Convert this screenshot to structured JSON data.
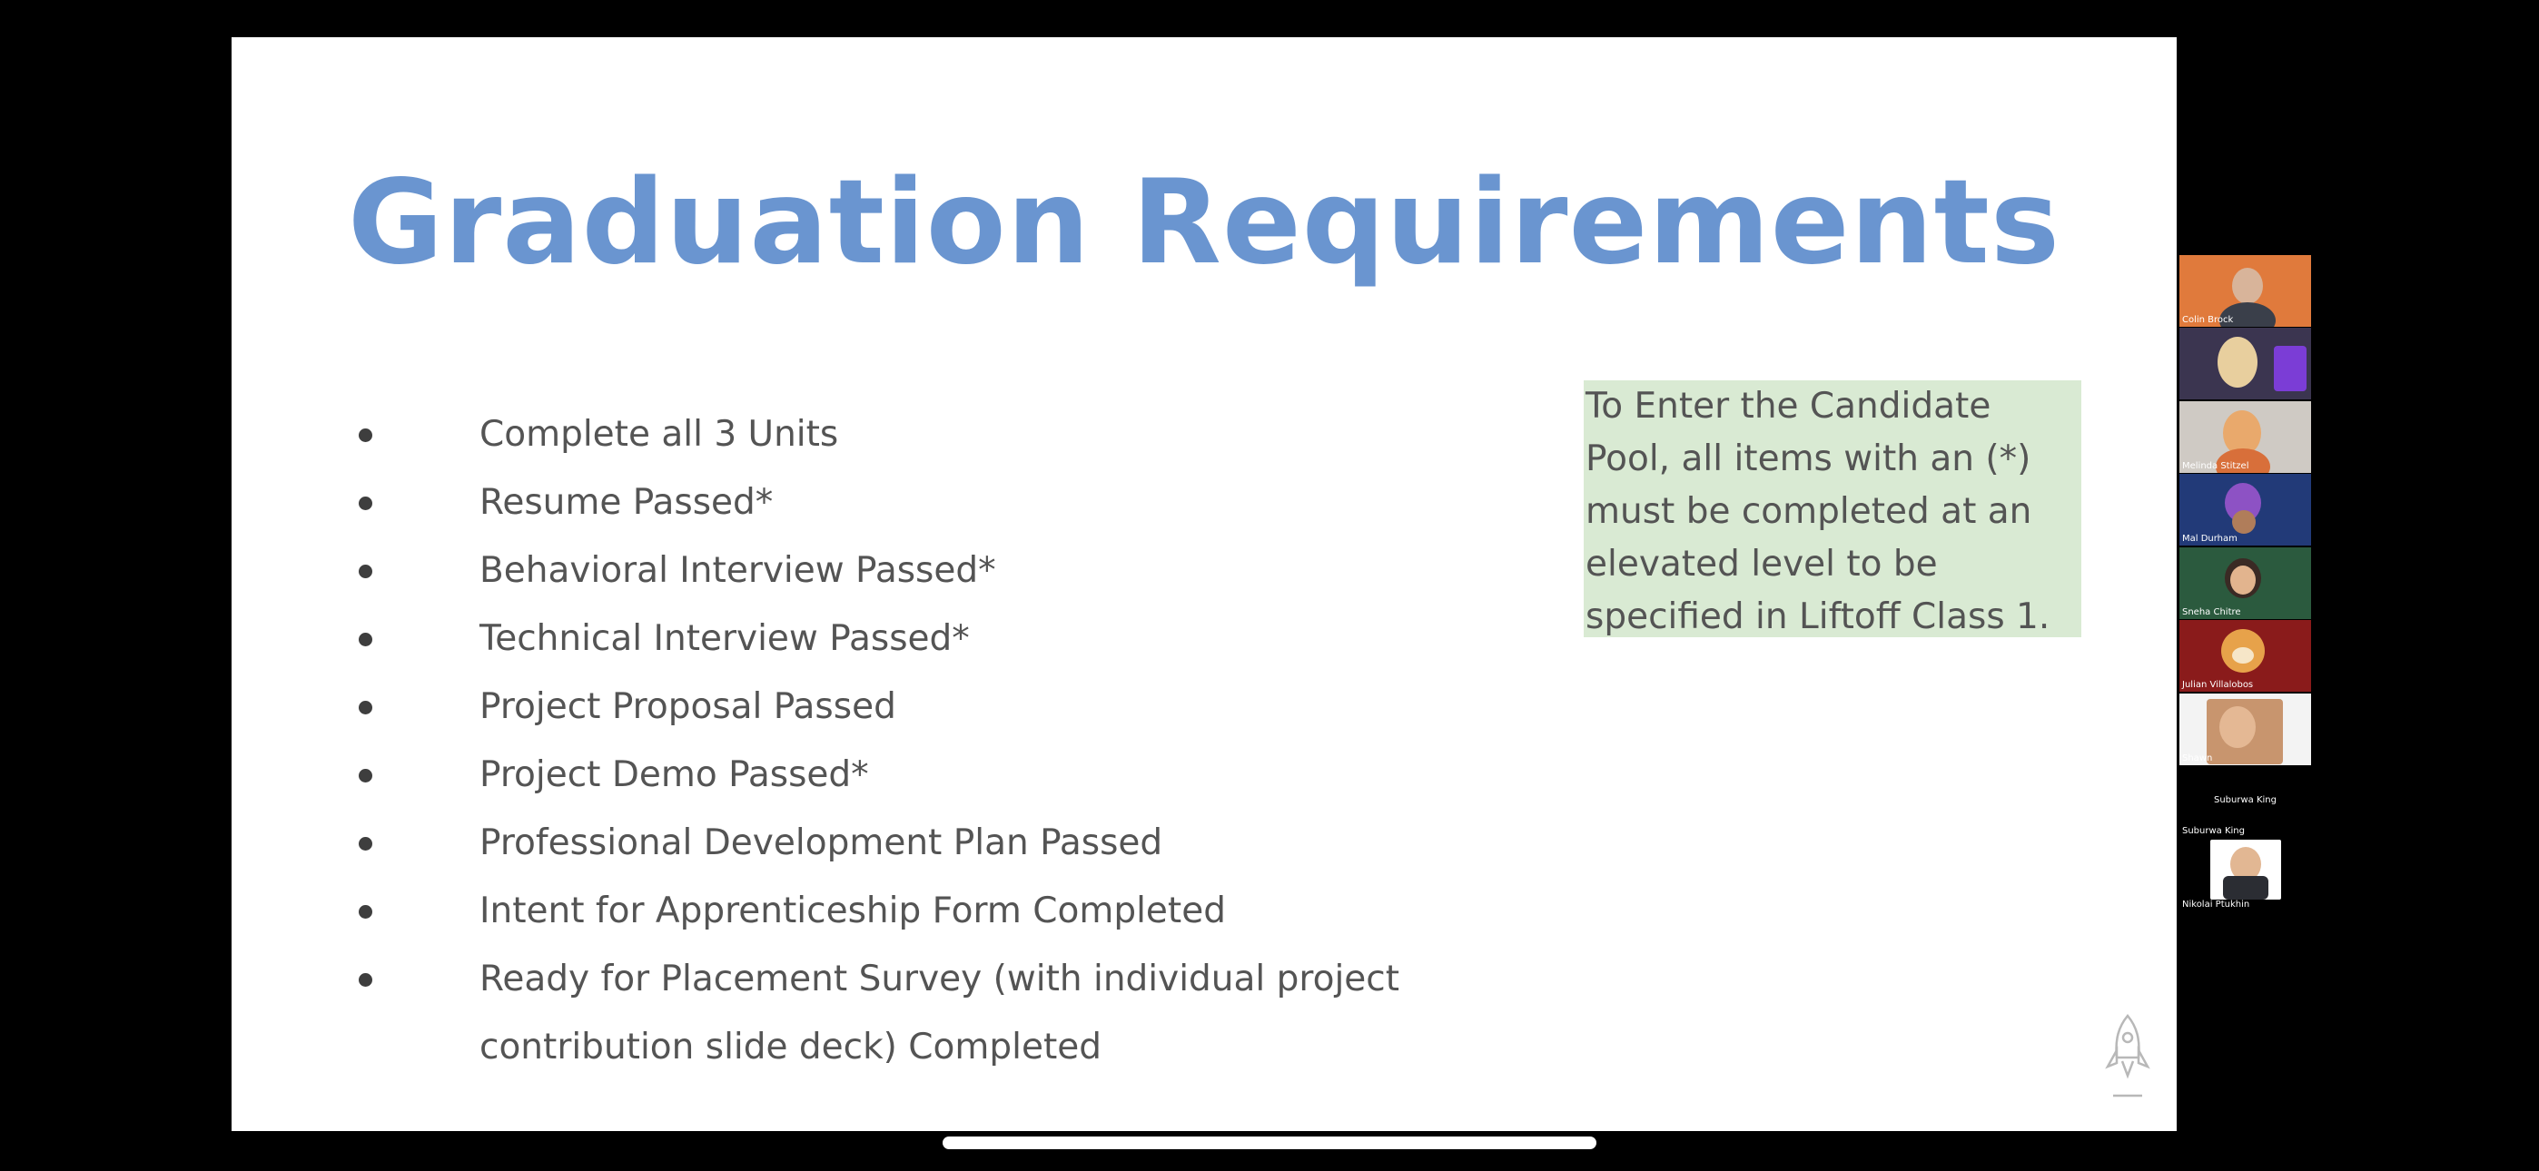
{
  "slide": {
    "title": "Graduation Requirements",
    "requirements": [
      "Complete all 3 Units",
      "Resume Passed*",
      "Behavioral Interview Passed*",
      "Technical Interview Passed*",
      "Project Proposal Passed",
      "Project Demo Passed*",
      "Professional Development Plan Passed",
      "Intent for Apprenticeship Form Completed",
      "Ready for Placement Survey (with individual project",
      "contribution slide deck) Completed"
    ],
    "note_lines": [
      "To Enter the Candidate",
      "Pool,  all items with an (*)",
      "must be completed at an",
      "elevated level to be",
      "specified in Liftoff Class 1."
    ],
    "logo_icon": "rocket-icon",
    "colors": {
      "title": "#6a95d0",
      "note_background": "#d9ead3",
      "text": "#545454"
    }
  },
  "participants": [
    {
      "name": "Colin Brock",
      "bg": "#e07a3c"
    },
    {
      "name": "",
      "bg": "#3b3550"
    },
    {
      "name": "Melinda Stitzel",
      "bg": "#cfcac4"
    },
    {
      "name": "Mal Durham",
      "bg": "#223a78"
    },
    {
      "name": "Sneha Chitre",
      "bg": "#2b5a3e"
    },
    {
      "name": "Julian Villalobos",
      "bg": "#8a1b1b"
    },
    {
      "name": "Shawn",
      "bg": "#f3f3f3"
    },
    {
      "name": "Suburwa King",
      "bg": "#000000"
    },
    {
      "name": "Suburwa King",
      "bg": "#000000"
    },
    {
      "name": "Nikolai Ptukhin",
      "bg": "#ffffff"
    }
  ]
}
